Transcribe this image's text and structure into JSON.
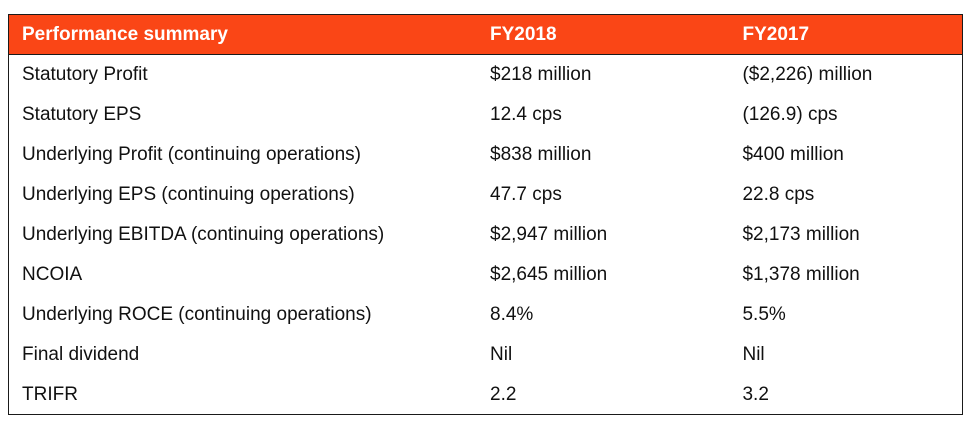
{
  "table": {
    "headers": [
      "Performance summary",
      "FY2018",
      "FY2017"
    ],
    "rows": [
      [
        "Statutory Profit",
        "$218 million",
        "($2,226) million"
      ],
      [
        "Statutory EPS",
        "12.4 cps",
        "(126.9) cps"
      ],
      [
        "Underlying Profit (continuing operations)",
        "$838 million",
        "$400 million"
      ],
      [
        "Underlying EPS (continuing operations)",
        "47.7 cps",
        "22.8 cps"
      ],
      [
        "Underlying EBITDA (continuing operations)",
        "$2,947 million",
        "$2,173 million"
      ],
      [
        "NCOIA",
        "$2,645 million",
        "$1,378 million"
      ],
      [
        "Underlying ROCE (continuing operations)",
        "8.4%",
        "5.5%"
      ],
      [
        "Final dividend",
        "Nil",
        "Nil"
      ],
      [
        "TRIFR",
        "2.2",
        "3.2"
      ]
    ]
  },
  "colors": {
    "header_background": "#fa4616",
    "header_text": "#ffffff",
    "border": "#1a1a1a"
  }
}
